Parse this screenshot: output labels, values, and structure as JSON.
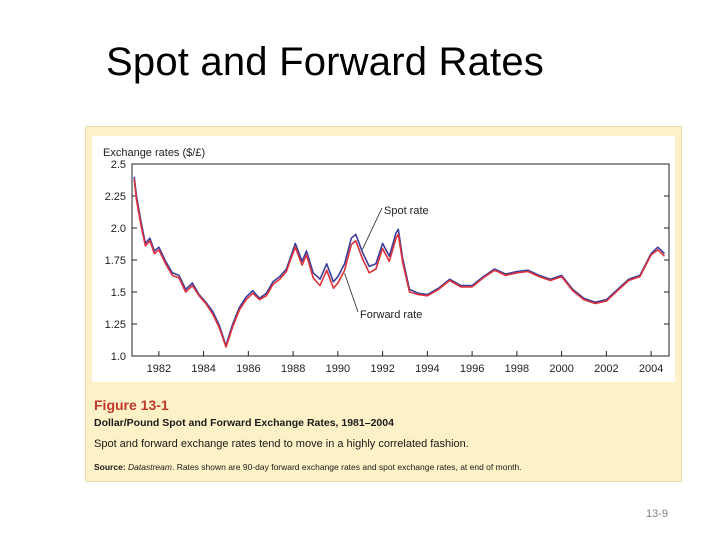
{
  "slide": {
    "title": "Spot and Forward Rates",
    "page_number": "13-9"
  },
  "figure": {
    "label": "Figure 13-1",
    "title": "Dollar/Pound Spot and Forward Exchange Rates, 1981–2004",
    "caption": "Spot and forward exchange rates tend to move in a highly correlated fashion.",
    "source_label": "Source:",
    "source_name": "Datastream",
    "source_text": ". Rates shown are 90-day forward exchange rates and spot exchange rates, at end of month."
  },
  "colors": {
    "spot": "#3b3f9c",
    "forward": "#e0303a",
    "axis": "#222222"
  },
  "chart_data": {
    "type": "line",
    "title": "Dollar/Pound Spot and Forward Exchange Rates, 1981–2004",
    "ylabel": "Exchange rates ($/£)",
    "xlabel": "",
    "xlim": [
      1980.8,
      2004.8
    ],
    "ylim": [
      1.0,
      2.5
    ],
    "yticks": [
      1.0,
      1.25,
      1.5,
      1.75,
      2.0,
      2.25,
      2.5
    ],
    "ytick_labels": [
      "1.0",
      "1.25",
      "1.5",
      "1.75",
      "2.0",
      "2.25",
      "2.5"
    ],
    "xticks": [
      1982,
      1984,
      1986,
      1988,
      1990,
      1992,
      1994,
      1996,
      1998,
      2000,
      2002,
      2004
    ],
    "xtick_labels": [
      "1982",
      "1984",
      "1986",
      "1988",
      "1990",
      "1992",
      "1994",
      "1996",
      "1998",
      "2000",
      "2002",
      "2004"
    ],
    "annotations": [
      {
        "text": "Spot rate",
        "series": "Spot rate",
        "at_x": 1991.2
      },
      {
        "text": "Forward rate",
        "series": "Forward rate",
        "at_x": 1990.2
      }
    ],
    "series": [
      {
        "name": "Spot rate",
        "x": [
          1980.9,
          1981.0,
          1981.2,
          1981.4,
          1981.6,
          1981.8,
          1982.0,
          1982.3,
          1982.6,
          1982.9,
          1983.2,
          1983.5,
          1983.8,
          1984.1,
          1984.4,
          1984.7,
          1985.0,
          1985.1,
          1985.3,
          1985.6,
          1985.9,
          1986.2,
          1986.5,
          1986.8,
          1987.1,
          1987.4,
          1987.7,
          1987.9,
          1988.1,
          1988.4,
          1988.6,
          1988.9,
          1989.2,
          1989.5,
          1989.8,
          1990.0,
          1990.3,
          1990.6,
          1990.8,
          1991.1,
          1991.4,
          1991.7,
          1992.0,
          1992.3,
          1992.6,
          1992.7,
          1992.9,
          1993.2,
          1993.6,
          1994.0,
          1994.5,
          1995.0,
          1995.5,
          1996.0,
          1996.5,
          1997.0,
          1997.5,
          1998.0,
          1998.5,
          1999.0,
          1999.5,
          2000.0,
          2000.5,
          2001.0,
          2001.5,
          2002.0,
          2002.5,
          2003.0,
          2003.5,
          2004.0,
          2004.3,
          2004.6
        ],
        "values": [
          2.4,
          2.25,
          2.05,
          1.88,
          1.92,
          1.82,
          1.85,
          1.74,
          1.65,
          1.63,
          1.52,
          1.57,
          1.48,
          1.42,
          1.35,
          1.24,
          1.08,
          1.14,
          1.25,
          1.38,
          1.46,
          1.51,
          1.45,
          1.49,
          1.58,
          1.62,
          1.68,
          1.78,
          1.88,
          1.74,
          1.82,
          1.65,
          1.6,
          1.72,
          1.58,
          1.62,
          1.72,
          1.92,
          1.95,
          1.81,
          1.7,
          1.72,
          1.88,
          1.78,
          1.96,
          1.99,
          1.76,
          1.52,
          1.49,
          1.48,
          1.53,
          1.6,
          1.55,
          1.55,
          1.62,
          1.68,
          1.64,
          1.66,
          1.67,
          1.63,
          1.6,
          1.63,
          1.52,
          1.45,
          1.42,
          1.44,
          1.52,
          1.6,
          1.63,
          1.8,
          1.85,
          1.8
        ]
      },
      {
        "name": "Forward rate",
        "x": [
          1980.9,
          1981.0,
          1981.2,
          1981.4,
          1981.6,
          1981.8,
          1982.0,
          1982.3,
          1982.6,
          1982.9,
          1983.2,
          1983.5,
          1983.8,
          1984.1,
          1984.4,
          1984.7,
          1985.0,
          1985.1,
          1985.3,
          1985.6,
          1985.9,
          1986.2,
          1986.5,
          1986.8,
          1987.1,
          1987.4,
          1987.7,
          1987.9,
          1988.1,
          1988.4,
          1988.6,
          1988.9,
          1989.2,
          1989.5,
          1989.8,
          1990.0,
          1990.3,
          1990.6,
          1990.8,
          1991.1,
          1991.4,
          1991.7,
          1992.0,
          1992.3,
          1992.6,
          1992.7,
          1992.9,
          1993.2,
          1993.6,
          1994.0,
          1994.5,
          1995.0,
          1995.5,
          1996.0,
          1996.5,
          1997.0,
          1997.5,
          1998.0,
          1998.5,
          1999.0,
          1999.5,
          2000.0,
          2000.5,
          2001.0,
          2001.5,
          2002.0,
          2002.5,
          2003.0,
          2003.5,
          2004.0,
          2004.3,
          2004.6
        ],
        "values": [
          2.38,
          2.22,
          2.02,
          1.86,
          1.9,
          1.8,
          1.83,
          1.72,
          1.63,
          1.61,
          1.5,
          1.55,
          1.47,
          1.41,
          1.33,
          1.22,
          1.07,
          1.12,
          1.23,
          1.36,
          1.44,
          1.49,
          1.44,
          1.47,
          1.56,
          1.6,
          1.66,
          1.76,
          1.85,
          1.71,
          1.79,
          1.61,
          1.55,
          1.67,
          1.53,
          1.57,
          1.67,
          1.87,
          1.9,
          1.76,
          1.65,
          1.68,
          1.84,
          1.74,
          1.92,
          1.95,
          1.73,
          1.5,
          1.48,
          1.47,
          1.52,
          1.59,
          1.54,
          1.54,
          1.61,
          1.67,
          1.63,
          1.65,
          1.66,
          1.62,
          1.59,
          1.62,
          1.51,
          1.44,
          1.41,
          1.43,
          1.51,
          1.59,
          1.62,
          1.79,
          1.83,
          1.78
        ]
      }
    ]
  }
}
